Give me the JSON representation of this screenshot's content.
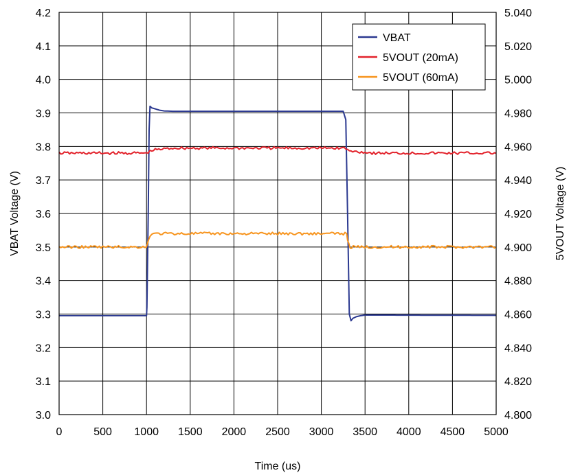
{
  "chart_data": {
    "type": "line",
    "title": "",
    "xlabel": "Time (us)",
    "ylabel_left": "VBAT Voltage (V)",
    "ylabel_right": "5VOUT Voltage (V)",
    "xlim": [
      0,
      5000
    ],
    "ylim_left": [
      3.0,
      4.2
    ],
    "ylim_right": [
      4.8,
      5.04
    ],
    "x_ticks": [
      "0",
      "500",
      "1000",
      "1500",
      "2000",
      "2500",
      "3000",
      "3500",
      "4000",
      "4500",
      "5000"
    ],
    "y_left_ticks": [
      "3.0",
      "3.1",
      "3.2",
      "3.3",
      "3.4",
      "3.5",
      "3.6",
      "3.7",
      "3.8",
      "3.9",
      "4.0",
      "4.1",
      "4.2"
    ],
    "y_right_ticks": [
      "4.800",
      "4.820",
      "4.840",
      "4.860",
      "4.880",
      "4.900",
      "4.920",
      "4.940",
      "4.960",
      "4.980",
      "5.000",
      "5.020",
      "5.040"
    ],
    "grid": true,
    "legend_position": "top-right",
    "series": [
      {
        "name": "VBAT",
        "axis": "left",
        "color": "#2b3990",
        "x": [
          0,
          1000,
          1005,
          1020,
          1030,
          1040,
          1060,
          1100,
          1150,
          1200,
          1300,
          1400,
          3250,
          3280,
          3300,
          3320,
          3340,
          3360,
          3400,
          3450,
          3500,
          3600,
          5000
        ],
        "y": [
          3.295,
          3.295,
          3.32,
          3.6,
          3.85,
          3.92,
          3.915,
          3.912,
          3.908,
          3.906,
          3.905,
          3.905,
          3.905,
          3.88,
          3.6,
          3.3,
          3.28,
          3.287,
          3.292,
          3.295,
          3.297,
          3.297,
          3.296
        ]
      },
      {
        "name": "5VOUT (20mA)",
        "axis": "right",
        "color": "#e2212a",
        "x": [
          0,
          1000,
          1040,
          1100,
          1300,
          1500,
          2000,
          2500,
          3000,
          3280,
          3320,
          3400,
          3600,
          4000,
          4500,
          5000
        ],
        "y": [
          4.956,
          4.956,
          4.957,
          4.958,
          4.959,
          4.959,
          4.959,
          4.959,
          4.959,
          4.959,
          4.957,
          4.957,
          4.956,
          4.956,
          4.956,
          4.956
        ]
      },
      {
        "name": "5VOUT (60mA)",
        "axis": "right",
        "color": "#f7941d",
        "x": [
          0,
          1000,
          1010,
          1040,
          1100,
          1500,
          2000,
          2500,
          3000,
          3290,
          3300,
          3330,
          3400,
          4000,
          4500,
          5000
        ],
        "y": [
          4.9,
          4.9,
          4.902,
          4.907,
          4.908,
          4.908,
          4.908,
          4.908,
          4.908,
          4.908,
          4.904,
          4.9,
          4.9,
          4.9,
          4.9,
          4.9
        ]
      }
    ]
  }
}
